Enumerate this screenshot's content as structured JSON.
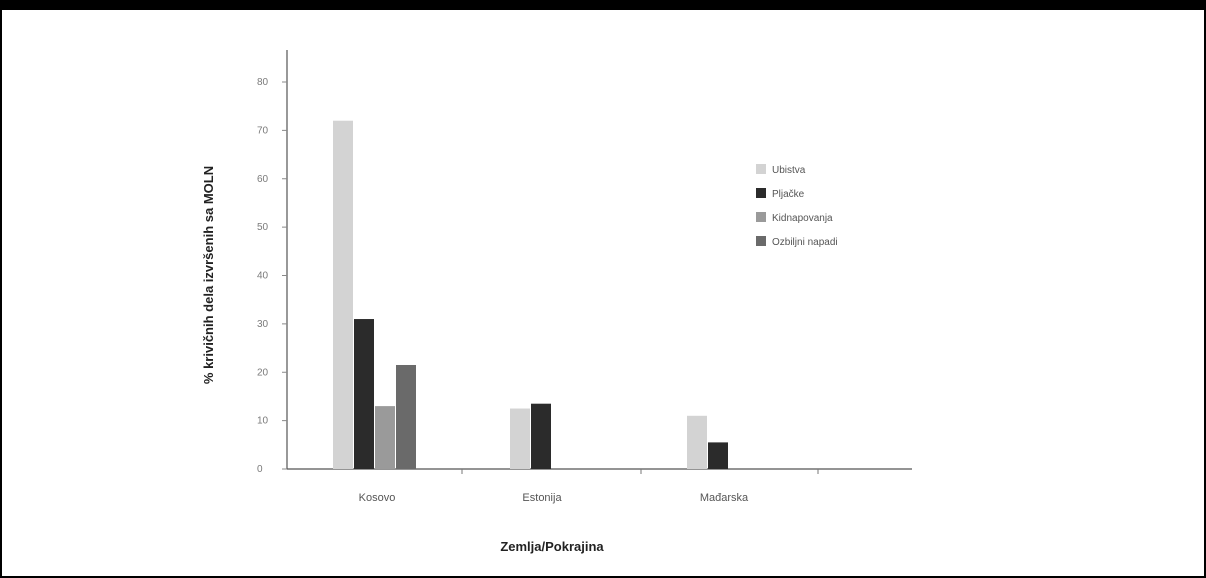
{
  "chart_data": {
    "type": "bar",
    "title": "",
    "xlabel": "Zemlja/Pokrajina",
    "ylabel": "% krivičnih dela izvršenih sa MOLN",
    "categories": [
      "Kosovo",
      "Estonija",
      "Mađarska"
    ],
    "series": [
      {
        "name": "Ubistva",
        "values": [
          72,
          12.5,
          11
        ],
        "color": "#d3d3d3"
      },
      {
        "name": "Pljačke",
        "values": [
          31,
          13.5,
          5.5
        ],
        "color": "#2b2b2b"
      },
      {
        "name": "Kidnapovanja",
        "values": [
          13,
          0,
          0
        ],
        "color": "#9a9a9a"
      },
      {
        "name": "Ozbiljni napadi",
        "values": [
          21.5,
          0,
          0
        ],
        "color": "#6a6a6a"
      }
    ],
    "ylim": [
      0,
      80
    ],
    "yticks": [
      0,
      10,
      20,
      30,
      40,
      50,
      60,
      70,
      80
    ],
    "grid": false,
    "legend_position": "right"
  }
}
